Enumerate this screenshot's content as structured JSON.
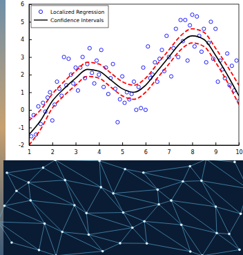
{
  "chart_data": {
    "type": "line",
    "xlim": [
      1,
      10
    ],
    "xticks": [
      1,
      2,
      3,
      4,
      5,
      6,
      7,
      8,
      9,
      10
    ],
    "ylim": [
      -2,
      6
    ],
    "yticks": [
      -2,
      -1,
      0,
      1,
      2,
      3,
      4,
      5,
      6
    ],
    "grid": false,
    "legend": "upper-left",
    "series": [
      {
        "name": "Localized Regression",
        "type": "scatter",
        "marker": "circle",
        "color": "#0000ff",
        "x": [
          1.0,
          1.1,
          1.2,
          1.3,
          1.4,
          1.5,
          1.6,
          1.7,
          1.8,
          1.9,
          2.0,
          2.1,
          2.2,
          2.3,
          2.4,
          2.5,
          2.6,
          2.7,
          2.8,
          2.9,
          3.0,
          3.1,
          3.2,
          3.3,
          3.4,
          3.5,
          3.6,
          3.7,
          3.8,
          3.9,
          4.0,
          4.1,
          4.2,
          4.3,
          4.4,
          4.5,
          4.6,
          4.7,
          4.8,
          4.9,
          5.0,
          5.1,
          5.2,
          5.3,
          5.4,
          5.5,
          5.6,
          5.7,
          5.8,
          5.9,
          6.0,
          6.1,
          6.2,
          6.3,
          6.4,
          6.5,
          6.6,
          6.7,
          6.8,
          6.9,
          7.0,
          7.1,
          7.2,
          7.3,
          7.4,
          7.5,
          7.6,
          7.7,
          7.8,
          7.9,
          8.0,
          8.1,
          8.2,
          8.3,
          8.4,
          8.5,
          8.6,
          8.7,
          8.8,
          8.9,
          9.0,
          9.1,
          9.2,
          9.3,
          9.4,
          9.5,
          9.6,
          9.7,
          9.8,
          9.9,
          10.0
        ],
        "values": [
          -0.5,
          -1.5,
          -0.3,
          -1.4,
          0.2,
          -0.8,
          0.4,
          -0.1,
          0.7,
          1.0,
          -0.6,
          0.3,
          1.6,
          1.2,
          0.8,
          3.0,
          1.4,
          2.9,
          2.0,
          1.5,
          2.4,
          1.1,
          2.4,
          3.0,
          1.8,
          2.6,
          3.5,
          2.1,
          1.5,
          2.8,
          2.0,
          3.4,
          1.3,
          2.4,
          0.9,
          1.8,
          2.6,
          1.2,
          -0.7,
          0.6,
          1.9,
          0.4,
          1.0,
          0.6,
          0.9,
          1.6,
          0.0,
          1.3,
          0.1,
          2.4,
          0.0,
          3.6,
          1.8,
          2.0,
          2.7,
          1.6,
          2.9,
          3.4,
          2.2,
          4.2,
          3.0,
          1.9,
          3.5,
          4.6,
          3.0,
          5.1,
          3.9,
          5.1,
          2.8,
          4.8,
          5.4,
          3.6,
          5.3,
          4.2,
          3.3,
          4.6,
          2.7,
          3.8,
          5.0,
          2.9,
          4.6,
          1.6,
          2.8,
          2.3,
          1.8,
          3.2,
          1.4,
          2.5,
          1.1,
          2.8,
          0.5
        ]
      },
      {
        "name": "Confidence Intervals",
        "type": "line",
        "line_style": "solid",
        "color": "#000000",
        "x": [
          1,
          1.5,
          2,
          2.5,
          3,
          3.5,
          4,
          4.5,
          5,
          5.5,
          6,
          6.5,
          7,
          7.5,
          8,
          8.5,
          9,
          9.5,
          10
        ],
        "values": [
          -1.4,
          -0.6,
          0.5,
          1.2,
          1.8,
          2.3,
          2.2,
          1.7,
          1.2,
          1.0,
          1.4,
          2.2,
          3.0,
          3.8,
          4.2,
          4.0,
          3.1,
          2.0,
          0.8
        ]
      },
      {
        "type": "line",
        "line_style": "dashed",
        "color": "#ff0000",
        "x": [
          1,
          1.5,
          2,
          2.5,
          3,
          3.5,
          4,
          4.5,
          5,
          5.5,
          6,
          6.5,
          7,
          7.5,
          8,
          8.5,
          9,
          9.5,
          10
        ],
        "values": [
          -0.6,
          0.0,
          0.9,
          1.6,
          2.2,
          2.7,
          2.6,
          2.1,
          1.6,
          1.4,
          1.8,
          2.6,
          3.4,
          4.2,
          4.6,
          4.4,
          3.5,
          2.5,
          1.4
        ]
      },
      {
        "type": "line",
        "line_style": "dashed",
        "color": "#ff0000",
        "x": [
          1,
          1.5,
          2,
          2.5,
          3,
          3.5,
          4,
          4.5,
          5,
          5.5,
          6,
          6.5,
          7,
          7.5,
          8,
          8.5,
          9,
          9.5,
          10
        ],
        "values": [
          -2.0,
          -1.1,
          0.1,
          0.8,
          1.4,
          1.9,
          1.8,
          1.3,
          0.8,
          0.6,
          1.0,
          1.8,
          2.6,
          3.4,
          3.8,
          3.6,
          2.7,
          1.6,
          0.3
        ]
      }
    ]
  }
}
